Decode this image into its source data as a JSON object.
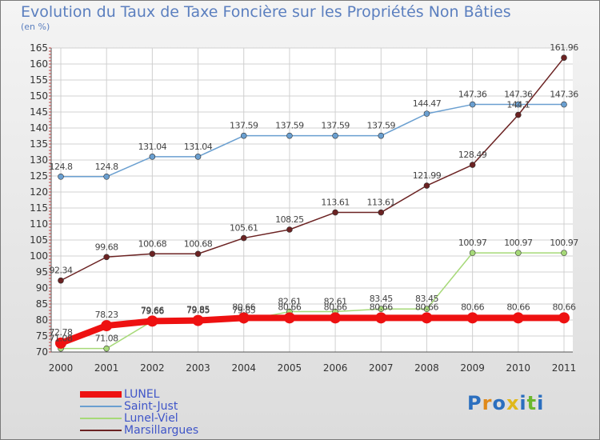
{
  "title": "Evolution du Taux de Taxe Foncière sur les Propriétés Non Bâties",
  "unit_label": "(en %)",
  "logo_text": "Proxiti",
  "colors": {
    "LUNEL": "#ee1111",
    "Saint-Just": "#6a9fd0",
    "Lunel-Viel": "#a6d978",
    "Marsillargues": "#6b2222",
    "axis_text": "#333333",
    "grid": "#d0d0d0"
  },
  "chart_data": {
    "type": "line",
    "title": "Evolution du Taux de Taxe Foncière sur les Propriétés Non Bâties",
    "ylabel": "(en %)",
    "xlabel": "",
    "ylim": [
      70,
      165
    ],
    "yticks": [
      70,
      75,
      80,
      85,
      90,
      95,
      100,
      105,
      110,
      115,
      120,
      125,
      130,
      135,
      140,
      145,
      150,
      155,
      160,
      165
    ],
    "x": [
      "2000",
      "2001",
      "2002",
      "2003",
      "2004",
      "2005",
      "2006",
      "2007",
      "2008",
      "2009",
      "2010",
      "2011"
    ],
    "series": [
      {
        "name": "LUNEL",
        "values": [
          72.78,
          78.23,
          79.66,
          79.85,
          80.66,
          80.66,
          80.66,
          80.66,
          80.66,
          80.66,
          80.66,
          80.66
        ],
        "labels": [
          "72.78",
          "78.23",
          "79.66",
          "79.85",
          "80.66",
          "80.66",
          "80.66",
          "80.66",
          "80.66",
          "80.66",
          "80.66",
          "80.66"
        ]
      },
      {
        "name": "Saint-Just",
        "values": [
          124.8,
          124.8,
          131.04,
          131.04,
          137.59,
          137.59,
          137.59,
          137.59,
          144.47,
          147.36,
          147.36,
          147.36
        ],
        "labels": [
          "124.8",
          "124.8",
          "131.04",
          "131.04",
          "137.59",
          "137.59",
          "137.59",
          "137.59",
          "144.47",
          "147.36",
          "147.36",
          "147.36"
        ]
      },
      {
        "name": "Lunel-Viel",
        "values": [
          71.08,
          71.08,
          79.66,
          79.85,
          79.85,
          82.61,
          82.61,
          83.45,
          83.45,
          100.97,
          100.97,
          100.97
        ],
        "labels": [
          "71.08",
          "71.08",
          "79.66",
          "79.85",
          "79.85",
          "82.61",
          "82.61",
          "83.45",
          "83.45",
          "100.97",
          "100.97",
          "100.97"
        ]
      },
      {
        "name": "Marsillargues",
        "values": [
          92.34,
          99.68,
          100.68,
          100.68,
          105.61,
          108.25,
          113.61,
          113.61,
          121.99,
          128.49,
          144.1,
          161.96
        ],
        "labels": [
          "92.34",
          "99.68",
          "100.68",
          "100.68",
          "105.61",
          "108.25",
          "113.61",
          "113.61",
          "121.99",
          "128.49",
          "144.1",
          "161.96"
        ]
      }
    ],
    "legend": [
      "LUNEL",
      "Saint-Just",
      "Lunel-Viel",
      "Marsillargues"
    ],
    "legend_position": "bottom-left",
    "grid": true
  }
}
